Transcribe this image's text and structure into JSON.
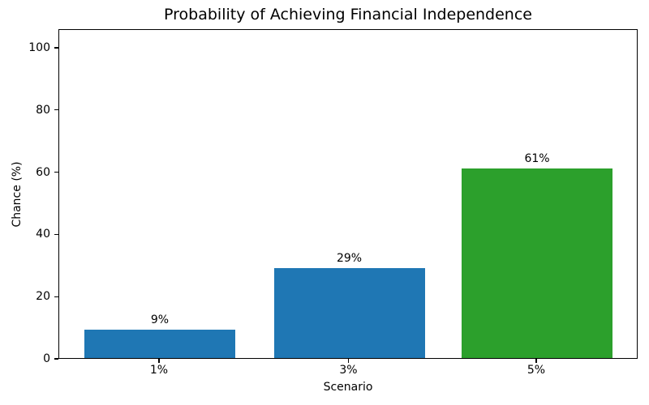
{
  "chart_data": {
    "type": "bar",
    "title": "Probability of Achieving Financial Independence",
    "xlabel": "Scenario",
    "ylabel": "Chance (%)",
    "categories": [
      "1%",
      "3%",
      "5%"
    ],
    "values": [
      9,
      29,
      61
    ],
    "value_labels": [
      "9%",
      "29%",
      "61%"
    ],
    "bar_colors": [
      "#1f77b4",
      "#1f77b4",
      "#2ca02c"
    ],
    "yticks": [
      0,
      20,
      40,
      60,
      80,
      100
    ],
    "ylim": [
      0,
      106
    ],
    "grid": false,
    "legend": null,
    "spine_color": "#000000",
    "background_color": "#ffffff"
  }
}
